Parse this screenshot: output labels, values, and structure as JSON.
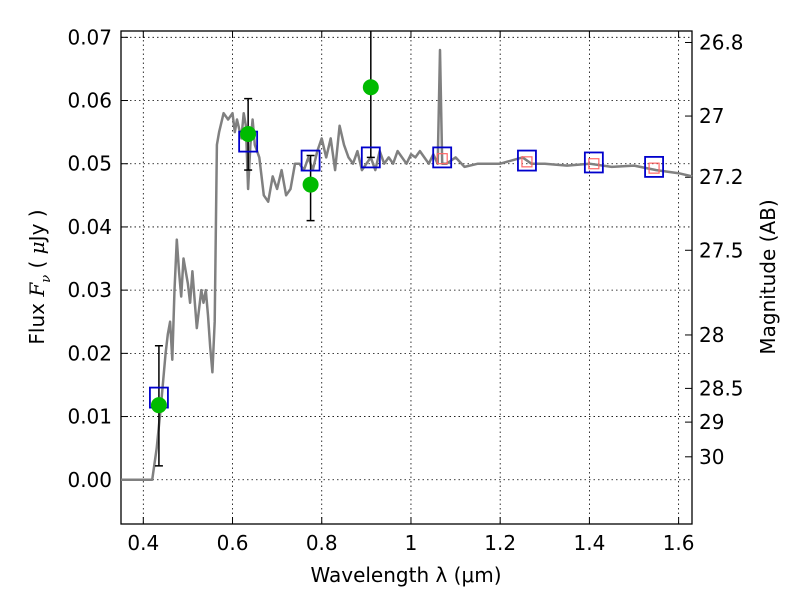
{
  "chart_data": {
    "type": "line",
    "xlabel": "Wavelength  λ (μm)",
    "ylabel": "Flux  F_ν  ( μJy )",
    "ylabel_right": "Magnitude (AB)",
    "xlim": [
      0.35,
      1.63
    ],
    "ylim": [
      -0.007,
      0.071
    ],
    "grid": true,
    "x_ticks": [
      {
        "value": 0.4,
        "label": "0.4"
      },
      {
        "value": 0.6,
        "label": "0.6"
      },
      {
        "value": 0.8,
        "label": "0.8"
      },
      {
        "value": 1.0,
        "label": "1"
      },
      {
        "value": 1.2,
        "label": "1.2"
      },
      {
        "value": 1.4,
        "label": "1.4"
      },
      {
        "value": 1.6,
        "label": "1.6"
      }
    ],
    "y_ticks": [
      {
        "value": 0.0,
        "label": "0.00"
      },
      {
        "value": 0.01,
        "label": "0.01"
      },
      {
        "value": 0.02,
        "label": "0.02"
      },
      {
        "value": 0.03,
        "label": "0.03"
      },
      {
        "value": 0.04,
        "label": "0.04"
      },
      {
        "value": 0.05,
        "label": "0.05"
      },
      {
        "value": 0.06,
        "label": "0.06"
      },
      {
        "value": 0.07,
        "label": "0.07"
      }
    ],
    "right_ticks": [
      {
        "mag": 26.8,
        "label": "26.8"
      },
      {
        "mag": 27.0,
        "label": "27"
      },
      {
        "mag": 27.2,
        "label": "27.2"
      },
      {
        "mag": 27.5,
        "label": "27.5"
      },
      {
        "mag": 28.0,
        "label": "28"
      },
      {
        "mag": 28.5,
        "label": "28.5"
      },
      {
        "mag": 29.0,
        "label": "29"
      },
      {
        "mag": 30.0,
        "label": "30"
      }
    ],
    "sed_model": {
      "color": "#808080",
      "x": [
        0.35,
        0.42,
        0.43,
        0.44,
        0.45,
        0.455,
        0.46,
        0.465,
        0.47,
        0.475,
        0.48,
        0.485,
        0.49,
        0.5,
        0.505,
        0.51,
        0.52,
        0.53,
        0.535,
        0.54,
        0.545,
        0.55,
        0.555,
        0.56,
        0.565,
        0.57,
        0.58,
        0.59,
        0.6,
        0.605,
        0.61,
        0.62,
        0.625,
        0.63,
        0.635,
        0.64,
        0.645,
        0.65,
        0.66,
        0.67,
        0.68,
        0.69,
        0.7,
        0.71,
        0.72,
        0.73,
        0.74,
        0.75,
        0.76,
        0.77,
        0.78,
        0.79,
        0.8,
        0.81,
        0.82,
        0.83,
        0.84,
        0.85,
        0.86,
        0.87,
        0.88,
        0.89,
        0.9,
        0.91,
        0.92,
        0.93,
        0.94,
        0.95,
        0.96,
        0.97,
        0.98,
        0.99,
        1.0,
        1.01,
        1.02,
        1.03,
        1.04,
        1.05,
        1.06,
        1.065,
        1.07,
        1.075,
        1.08,
        1.1,
        1.12,
        1.15,
        1.2,
        1.25,
        1.27,
        1.3,
        1.35,
        1.4,
        1.45,
        1.5,
        1.55,
        1.6,
        1.63
      ],
      "y": [
        0.0,
        0.0,
        0.005,
        0.012,
        0.02,
        0.023,
        0.025,
        0.019,
        0.03,
        0.038,
        0.033,
        0.029,
        0.035,
        0.031,
        0.028,
        0.033,
        0.024,
        0.03,
        0.028,
        0.03,
        0.026,
        0.021,
        0.017,
        0.025,
        0.053,
        0.055,
        0.058,
        0.057,
        0.058,
        0.055,
        0.057,
        0.054,
        0.058,
        0.056,
        0.046,
        0.053,
        0.057,
        0.053,
        0.051,
        0.045,
        0.044,
        0.048,
        0.046,
        0.049,
        0.045,
        0.046,
        0.05,
        0.05,
        0.049,
        0.051,
        0.049,
        0.052,
        0.054,
        0.051,
        0.054,
        0.049,
        0.056,
        0.053,
        0.051,
        0.05,
        0.052,
        0.049,
        0.05,
        0.051,
        0.049,
        0.052,
        0.05,
        0.051,
        0.05,
        0.052,
        0.051,
        0.05,
        0.0515,
        0.051,
        0.052,
        0.051,
        0.05,
        0.0515,
        0.05,
        0.068,
        0.05,
        0.05,
        0.05,
        0.051,
        0.0495,
        0.05,
        0.05,
        0.051,
        0.05,
        0.05,
        0.0497,
        0.05,
        0.0495,
        0.0497,
        0.049,
        0.0485,
        0.048
      ]
    },
    "model_photometry": {
      "marker": "open square",
      "color": "#0000cc",
      "x": [
        0.435,
        0.635,
        0.775,
        0.91,
        1.07,
        1.26,
        1.41,
        1.545
      ],
      "y": [
        0.013,
        0.0535,
        0.0505,
        0.051,
        0.051,
        0.0505,
        0.0502,
        0.0495
      ]
    },
    "observed_upper_points": {
      "marker": "small open square",
      "color": "#ff6666",
      "x": [
        1.07,
        1.26,
        1.41,
        1.545
      ],
      "y": [
        0.0508,
        0.0503,
        0.05,
        0.0493
      ]
    },
    "observed": {
      "marker": "filled circle",
      "color": "#00bb00",
      "x": [
        0.435,
        0.635,
        0.775,
        0.91
      ],
      "y": [
        0.0118,
        0.0547,
        0.0467,
        0.0621
      ],
      "yerr_low": [
        0.0022,
        0.049,
        0.041,
        0.051
      ],
      "yerr_high": [
        0.0212,
        0.0603,
        0.0513,
        0.0712
      ]
    }
  }
}
